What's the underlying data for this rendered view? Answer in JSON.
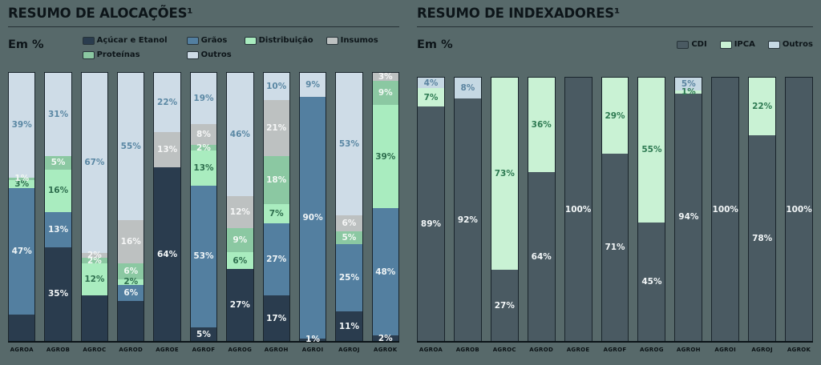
{
  "page": {
    "background": "#57696a"
  },
  "chart_data": [
    {
      "type": "bar",
      "stacked": true,
      "orientation": "vertical",
      "title": "RESUMO DE ALOCAÇÕES¹",
      "unit_label": "Em %",
      "ylim": [
        0,
        100
      ],
      "grid": false,
      "legend_position": "top",
      "legend": [
        {
          "label": "Açúcar e Etanol",
          "color": "#2a3c4e"
        },
        {
          "label": "Grãos",
          "color": "#537fa0"
        },
        {
          "label": "Distribuição",
          "color": "#a9ecbf"
        },
        {
          "label": "Insumos",
          "color": "#bdc1c1"
        },
        {
          "label": "Proteínas",
          "color": "#8bc8a2"
        },
        {
          "label": "Outros",
          "color": "#cedce7"
        }
      ],
      "categories": [
        "AGROA",
        "AGROB",
        "AGROC",
        "AGROD",
        "AGROE",
        "AGROF",
        "AGROG",
        "AGROH",
        "AGROI",
        "AGROJ",
        "AGROK"
      ],
      "series": [
        {
          "name": "Açúcar e Etanol",
          "color": "#2a3c4e",
          "label_color": "#f2f6f7",
          "values": [
            10,
            35,
            17,
            15,
            64,
            5,
            27,
            17,
            1,
            11,
            2
          ],
          "labels": [
            "",
            "35%",
            "",
            "",
            "64%",
            "5%",
            "27%",
            "17%",
            "1%",
            "11%",
            "2%"
          ]
        },
        {
          "name": "Grãos",
          "color": "#537fa0",
          "label_color": "#eef4f6",
          "values": [
            47,
            13,
            0,
            6,
            0,
            53,
            0,
            27,
            90,
            25,
            48
          ],
          "labels": [
            "47%",
            "13%",
            "",
            "6%",
            "",
            "53%",
            "",
            "27%",
            "90%",
            "25%",
            "48%"
          ]
        },
        {
          "name": "Distribuição",
          "color": "#a9ecbf",
          "label_color": "#2e6e4e",
          "values": [
            3,
            16,
            12,
            2,
            0,
            13,
            6,
            7,
            0,
            0,
            39
          ],
          "labels": [
            "3%",
            "16%",
            "12%",
            "2%",
            "",
            "13%",
            "6%",
            "7%",
            "",
            "",
            "39%"
          ]
        },
        {
          "name": "Proteínas",
          "color": "#8bc8a2",
          "label_color": "#f1f8f3",
          "values": [
            1,
            5,
            2,
            6,
            0,
            2,
            9,
            18,
            0,
            5,
            9
          ],
          "labels": [
            "1%",
            "5%",
            "2%",
            "6%",
            "",
            "2%",
            "9%",
            "18%",
            "",
            "5%",
            "9%"
          ]
        },
        {
          "name": "Insumos",
          "color": "#bdc1c1",
          "label_color": "#f5f6f6",
          "values": [
            0,
            0,
            2,
            16,
            13,
            8,
            12,
            21,
            0,
            6,
            3
          ],
          "labels": [
            "",
            "",
            "2%",
            "16%",
            "13%",
            "8%",
            "12%",
            "21%",
            "",
            "6%",
            "3%"
          ]
        },
        {
          "name": "Outros",
          "color": "#cedce7",
          "label_color": "#5b88a4",
          "values": [
            39,
            31,
            67,
            55,
            22,
            19,
            46,
            10,
            9,
            53,
            0
          ],
          "labels": [
            "39%",
            "31%",
            "67%",
            "55%",
            "22%",
            "19%",
            "46%",
            "10%",
            "9%",
            "53%",
            ""
          ]
        }
      ]
    },
    {
      "type": "bar",
      "stacked": true,
      "orientation": "vertical",
      "title": "RESUMO DE INDEXADORES¹",
      "unit_label": "Em %",
      "ylim": [
        0,
        100
      ],
      "grid": false,
      "legend_position": "top-right",
      "legend": [
        {
          "label": "CDI",
          "color": "#4a5a62"
        },
        {
          "label": "IPCA",
          "color": "#c9f2d4"
        },
        {
          "label": "Outros",
          "color": "#c5d8e3"
        }
      ],
      "categories": [
        "AGROA",
        "AGROB",
        "AGROC",
        "AGROD",
        "AGROE",
        "AGROF",
        "AGROG",
        "AGROH",
        "AGROI",
        "AGROJ",
        "AGROK"
      ],
      "series": [
        {
          "name": "CDI",
          "color": "#4a5a62",
          "label_color": "#f2f6f7",
          "values": [
            89,
            92,
            27,
            64,
            100,
            71,
            45,
            94,
            100,
            78,
            100
          ],
          "labels": [
            "89%",
            "92%",
            "27%",
            "64%",
            "100%",
            "71%",
            "45%",
            "94%",
            "100%",
            "78%",
            "100%"
          ]
        },
        {
          "name": "IPCA",
          "color": "#c9f2d4",
          "label_color": "#2e7a52",
          "values": [
            7,
            0,
            73,
            36,
            0,
            29,
            55,
            1,
            0,
            22,
            0
          ],
          "labels": [
            "7%",
            "",
            "73%",
            "36%",
            "",
            "29%",
            "55%",
            "1%",
            "",
            "22%",
            ""
          ]
        },
        {
          "name": "Outros",
          "color": "#c5d8e3",
          "label_color": "#5b84a0",
          "values": [
            4,
            8,
            0,
            0,
            0,
            0,
            0,
            5,
            0,
            0,
            0
          ],
          "labels": [
            "4%",
            "8%",
            "",
            "",
            "",
            "",
            "",
            "5%",
            "",
            "",
            ""
          ]
        }
      ]
    }
  ]
}
